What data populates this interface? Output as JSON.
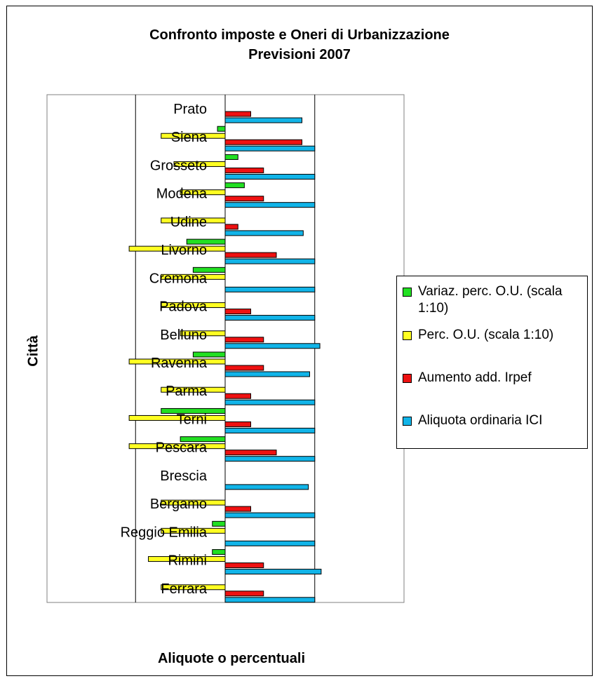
{
  "chart_data": {
    "type": "bar",
    "orientation": "horizontal",
    "title": [
      "Confronto imposte e Oneri di Urbanizzazione",
      "Previsioni 2007"
    ],
    "xlabel": "Aliquote o percentuali",
    "ylabel": "Città",
    "categories": [
      "Prato",
      "Siena",
      "Grosseto",
      "Modena",
      "Udine",
      "Livorno",
      "Cremona",
      "Padova",
      "Belluno",
      "Ravenna",
      "Parma",
      "Terni",
      "Pescara",
      "Brescia",
      "Bergamo",
      "Reggio Emilia",
      "Rimini",
      "Ferrara"
    ],
    "xlim": [
      -7,
      7
    ],
    "grid": "vertical",
    "legend_position": "right",
    "series": [
      {
        "name": "Variaz. perc. O.U. (scala 1:10)",
        "color": "#22e022",
        "values": [
          0,
          -0.3,
          0.5,
          0.75,
          0,
          -1.5,
          -1.25,
          0,
          0,
          -1.25,
          0,
          -2.5,
          -1.75,
          0,
          0,
          -0.5,
          -0.5,
          0
        ]
      },
      {
        "name": "Perc. O.U. (scala 1:10)",
        "color": "#ffff22",
        "values": [
          0,
          -2.5,
          -2,
          -1.75,
          -2.5,
          -3.75,
          -2.5,
          -2.5,
          -1.75,
          -3.75,
          -2.5,
          -3.75,
          -3.75,
          0,
          -2.5,
          -2.5,
          -3,
          -2.5
        ]
      },
      {
        "name": "Aumento add. Irpef",
        "color": "#ee1111",
        "values": [
          1,
          3,
          1.5,
          1.5,
          0.5,
          2,
          0,
          1,
          1.5,
          1.5,
          1,
          1,
          2,
          0,
          1,
          0,
          1.5,
          1.5
        ]
      },
      {
        "name": "Aliquota ordinaria ICI",
        "color": "#11b4e8",
        "values": [
          3,
          3.5,
          3.5,
          3.5,
          3.05,
          3.5,
          3.5,
          3.5,
          3.7,
          3.3,
          3.5,
          3.5,
          3.5,
          3.25,
          3.5,
          3.5,
          3.75,
          3.5
        ]
      }
    ]
  }
}
